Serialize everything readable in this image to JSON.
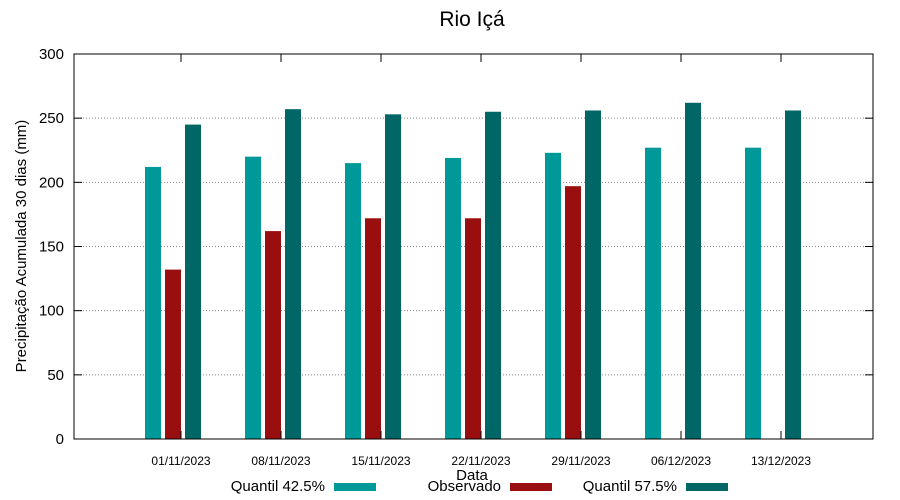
{
  "chart_data": {
    "type": "bar",
    "title": "Rio Içá",
    "xlabel": "Data",
    "ylabel": "Precipitação Acumulada 30 dias (mm)",
    "ylim": [
      0,
      300
    ],
    "yticks": [
      0,
      50,
      100,
      150,
      200,
      250,
      300
    ],
    "grid": true,
    "categories": [
      "01/11/2023",
      "08/11/2023",
      "15/11/2023",
      "22/11/2023",
      "29/11/2023",
      "06/12/2023",
      "13/12/2023"
    ],
    "series": [
      {
        "name": "Quantil 42.5%",
        "color": "#009999",
        "values": [
          212,
          220,
          215,
          219,
          223,
          227,
          227
        ]
      },
      {
        "name": "Observado",
        "color": "#990f0f",
        "values": [
          132,
          162,
          172,
          172,
          197,
          null,
          null
        ]
      },
      {
        "name": "Quantil 57.5%",
        "color": "#006666",
        "values": [
          245,
          257,
          253,
          255,
          256,
          262,
          256
        ]
      }
    ],
    "legend_position": "bottom"
  }
}
